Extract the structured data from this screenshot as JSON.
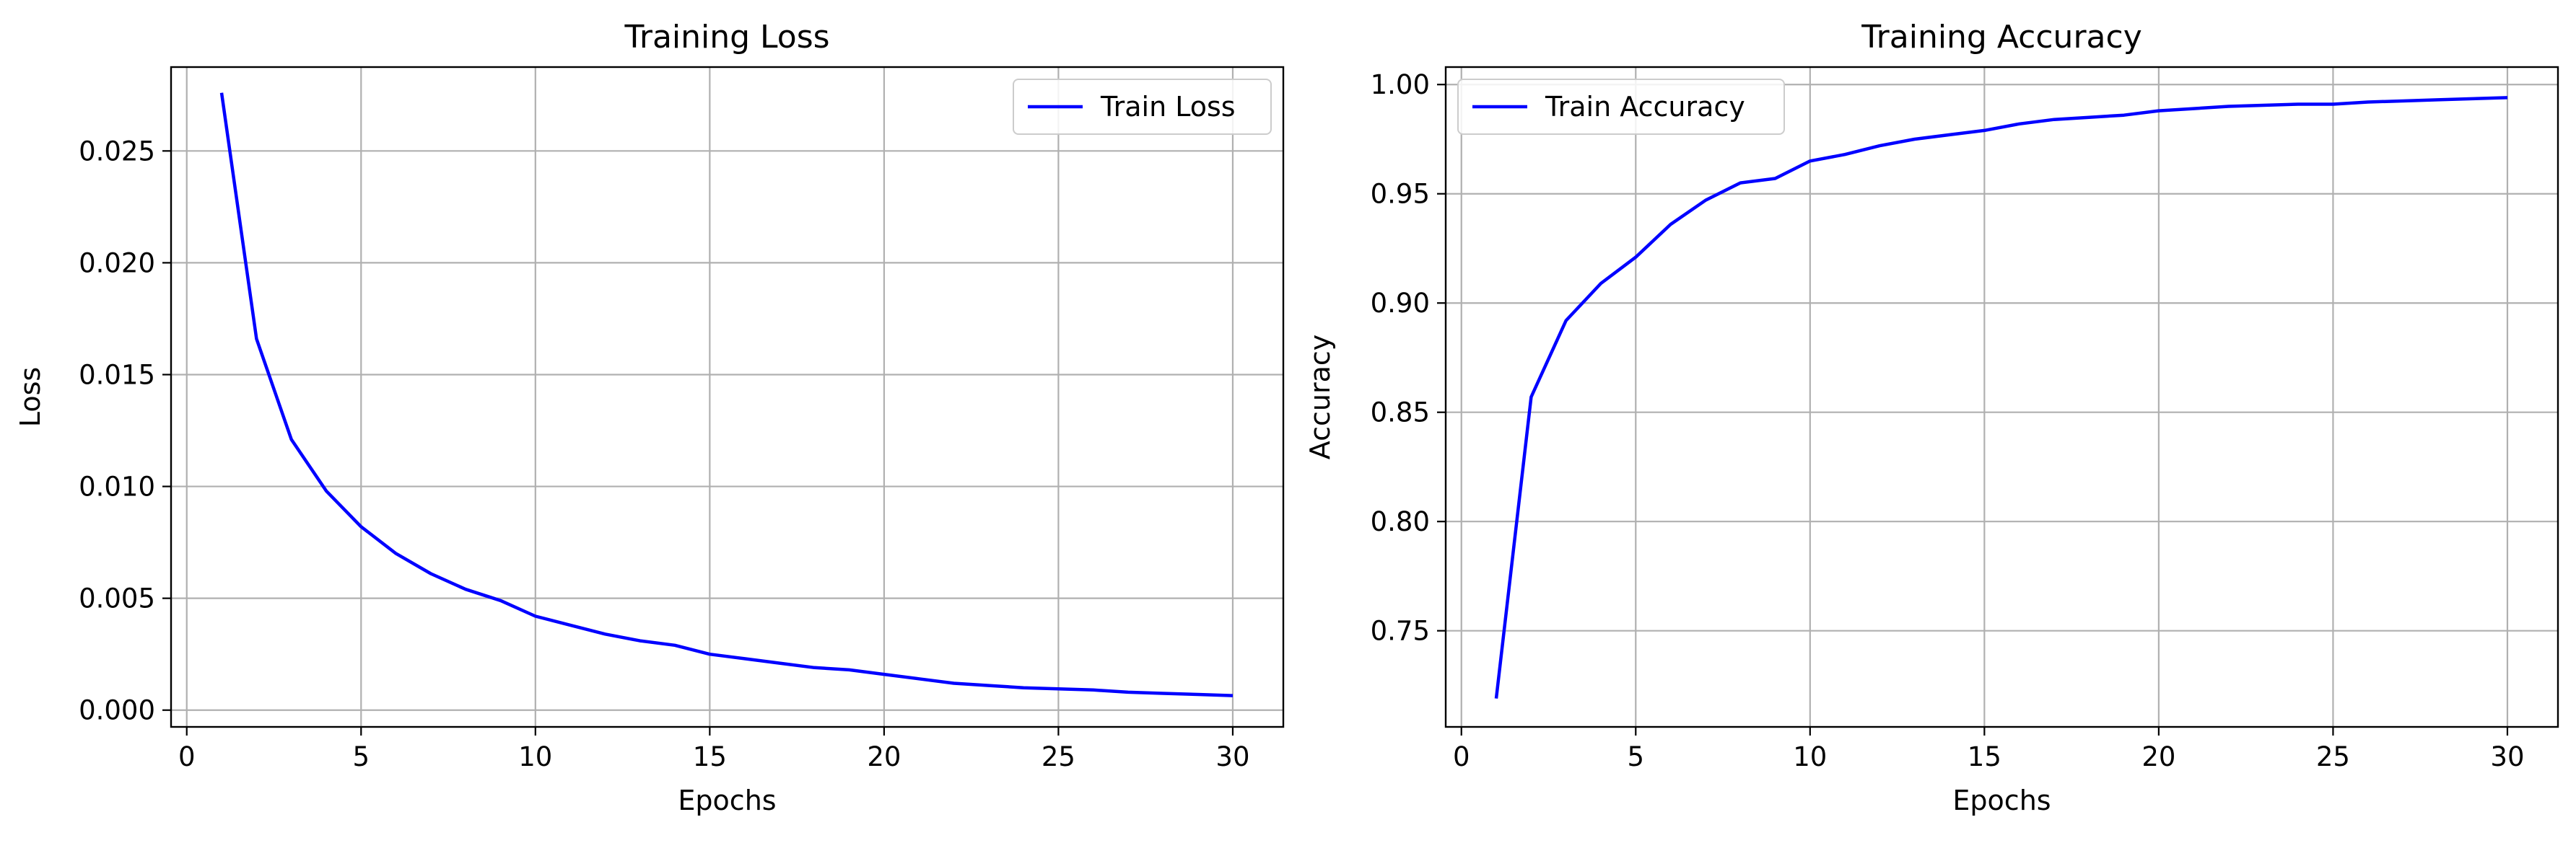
{
  "chart_data": [
    {
      "type": "line",
      "title": "Training Loss",
      "xlabel": "Epochs",
      "ylabel": "Loss",
      "xlim": [
        -0.45,
        31.45
      ],
      "ylim": [
        -0.00075,
        0.02875
      ],
      "xticks": [
        0,
        5,
        10,
        15,
        20,
        25,
        30
      ],
      "xtick_labels": [
        "0",
        "5",
        "10",
        "15",
        "20",
        "25",
        "30"
      ],
      "yticks": [
        0.0,
        0.005,
        0.01,
        0.015,
        0.02,
        0.025
      ],
      "ytick_labels": [
        "0.000",
        "0.005",
        "0.010",
        "0.015",
        "0.020",
        "0.025"
      ],
      "grid": true,
      "legend": "upper right",
      "series": [
        {
          "name": "Train Loss",
          "color": "#0000ff",
          "x": [
            1,
            2,
            3,
            4,
            5,
            6,
            7,
            8,
            9,
            10,
            11,
            12,
            13,
            14,
            15,
            16,
            17,
            18,
            19,
            20,
            21,
            22,
            23,
            24,
            25,
            26,
            27,
            28,
            29,
            30
          ],
          "values": [
            0.0276,
            0.0166,
            0.0121,
            0.0098,
            0.0082,
            0.007,
            0.0061,
            0.0054,
            0.0049,
            0.0042,
            0.0038,
            0.0034,
            0.0031,
            0.0029,
            0.0025,
            0.0023,
            0.0021,
            0.0019,
            0.0018,
            0.0016,
            0.0014,
            0.0012,
            0.0011,
            0.001,
            0.00095,
            0.0009,
            0.0008,
            0.00075,
            0.0007,
            0.00065
          ]
        }
      ]
    },
    {
      "type": "line",
      "title": "Training Accuracy",
      "xlabel": "Epochs",
      "ylabel": "Accuracy",
      "xlim": [
        -0.45,
        31.45
      ],
      "ylim": [
        0.706,
        1.008
      ],
      "xticks": [
        0,
        5,
        10,
        15,
        20,
        25,
        30
      ],
      "xtick_labels": [
        "0",
        "5",
        "10",
        "15",
        "20",
        "25",
        "30"
      ],
      "yticks": [
        0.75,
        0.8,
        0.85,
        0.9,
        0.95,
        1.0
      ],
      "ytick_labels": [
        "0.75",
        "0.80",
        "0.85",
        "0.90",
        "0.95",
        "1.00"
      ],
      "grid": true,
      "legend": "upper left",
      "series": [
        {
          "name": "Train Accuracy",
          "color": "#0000ff",
          "x": [
            1,
            2,
            3,
            4,
            5,
            6,
            7,
            8,
            9,
            10,
            11,
            12,
            13,
            14,
            15,
            16,
            17,
            18,
            19,
            20,
            21,
            22,
            23,
            24,
            25,
            26,
            27,
            28,
            29,
            30
          ],
          "values": [
            0.719,
            0.857,
            0.892,
            0.909,
            0.921,
            0.936,
            0.947,
            0.955,
            0.957,
            0.965,
            0.968,
            0.972,
            0.975,
            0.977,
            0.979,
            0.982,
            0.984,
            0.985,
            0.986,
            0.988,
            0.989,
            0.99,
            0.9905,
            0.991,
            0.991,
            0.992,
            0.9925,
            0.993,
            0.9935,
            0.994
          ]
        }
      ]
    }
  ]
}
